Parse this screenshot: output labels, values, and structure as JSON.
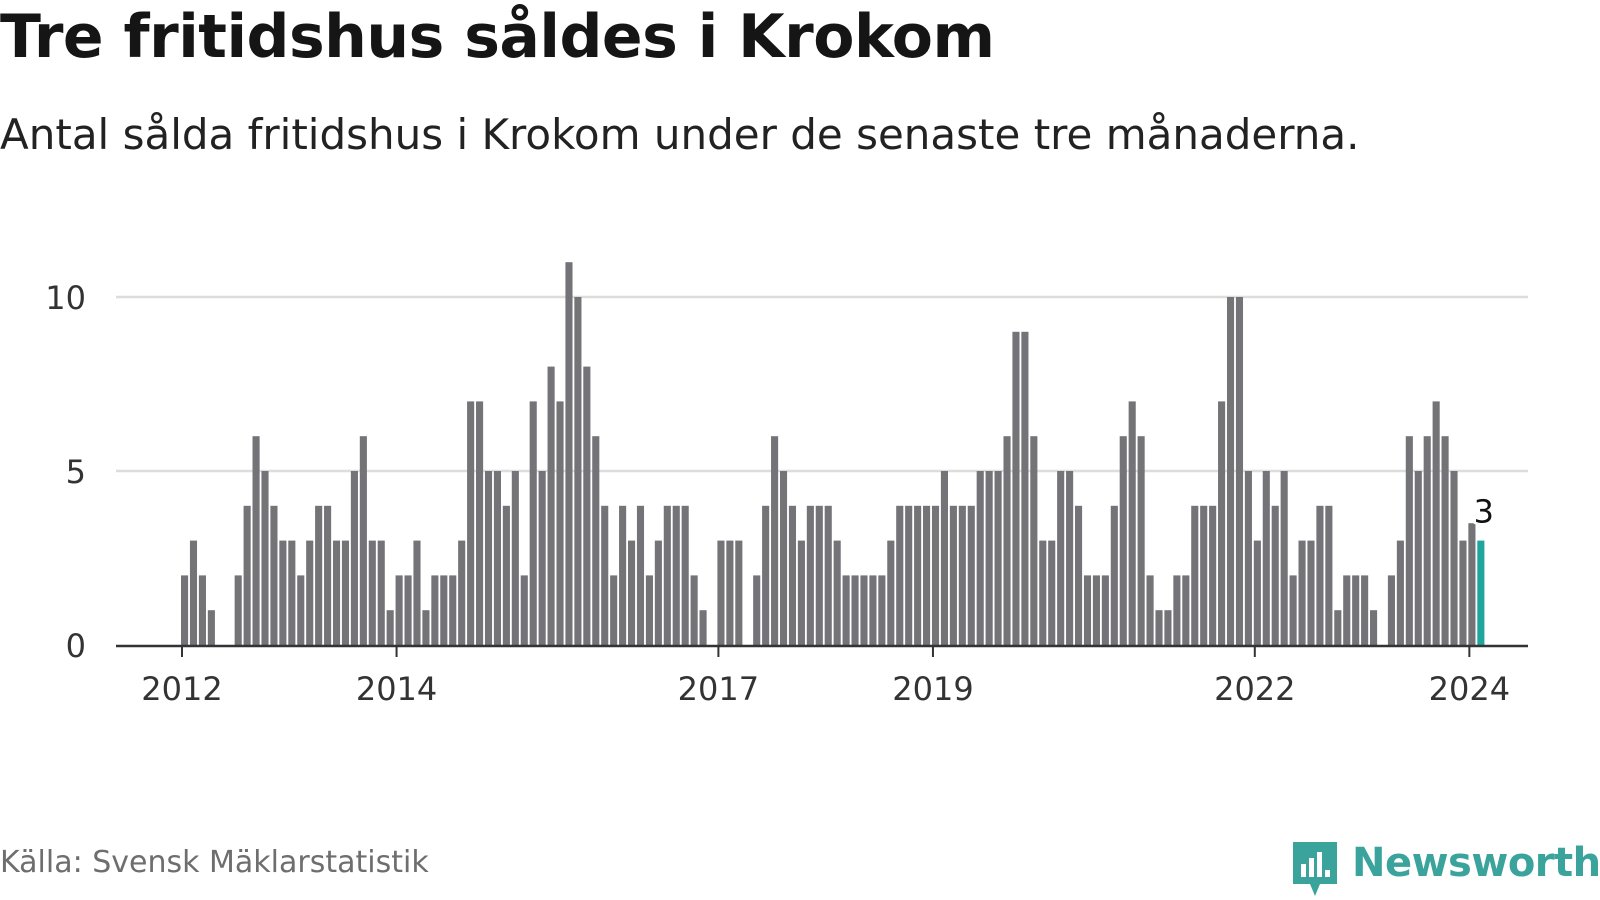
{
  "header": {
    "title": "Tre fritidshus såldes i Krokom",
    "subtitle": "Antal sålda fritidshus i Krokom under de senaste tre månaderna."
  },
  "footer": {
    "source": "Källa: Svensk Mäklarstatistik",
    "brand": "Newsworthy"
  },
  "colors": {
    "bar": "#737378",
    "highlight": "#1fa59c",
    "grid": "#dddddd",
    "axis": "#333333",
    "brand": "#3aa39b"
  },
  "chart_data": {
    "type": "bar",
    "title": "Tre fritidshus såldes i Krokom",
    "subtitle": "Antal sålda fritidshus i Krokom under de senaste tre månaderna.",
    "xlabel": "",
    "ylabel": "",
    "ylim": [
      0,
      11
    ],
    "yticks": [
      0,
      5,
      10
    ],
    "grid": true,
    "x_start": "2011-05",
    "x_tick_labels": [
      {
        "label": "2012",
        "month_index": 8
      },
      {
        "label": "2014",
        "month_index": 32
      },
      {
        "label": "2017",
        "month_index": 68
      },
      {
        "label": "2019",
        "month_index": 92
      },
      {
        "label": "2022",
        "month_index": 128
      },
      {
        "label": "2024",
        "month_index": 152
      }
    ],
    "values": [
      0,
      0,
      0,
      0,
      0,
      0,
      0,
      0,
      2,
      3,
      2,
      1,
      0,
      0,
      2,
      4,
      6,
      5,
      4,
      3,
      3,
      2,
      3,
      4,
      4,
      3,
      3,
      5,
      6,
      3,
      3,
      1,
      2,
      2,
      3,
      1,
      2,
      2,
      2,
      3,
      7,
      7,
      5,
      5,
      4,
      5,
      2,
      7,
      5,
      8,
      7,
      11,
      10,
      8,
      6,
      4,
      2,
      4,
      3,
      4,
      2,
      3,
      4,
      4,
      4,
      2,
      1,
      0,
      3,
      3,
      3,
      0,
      2,
      4,
      6,
      5,
      4,
      3,
      4,
      4,
      4,
      3,
      2,
      2,
      2,
      2,
      2,
      3,
      4,
      4,
      4,
      4,
      4,
      5,
      4,
      4,
      4,
      5,
      5,
      5,
      6,
      9,
      9,
      6,
      3,
      3,
      5,
      5,
      4,
      2,
      2,
      2,
      4,
      6,
      7,
      6,
      2,
      1,
      1,
      2,
      2,
      4,
      4,
      4,
      7,
      10,
      10,
      5,
      3,
      5,
      4,
      5,
      2,
      3,
      3,
      4,
      4,
      1,
      2,
      2,
      2,
      1,
      0,
      2,
      3,
      6,
      5,
      6,
      7,
      6,
      5,
      3,
      3.5,
      3
    ],
    "highlight_index": 153,
    "highlight_label": "3"
  }
}
